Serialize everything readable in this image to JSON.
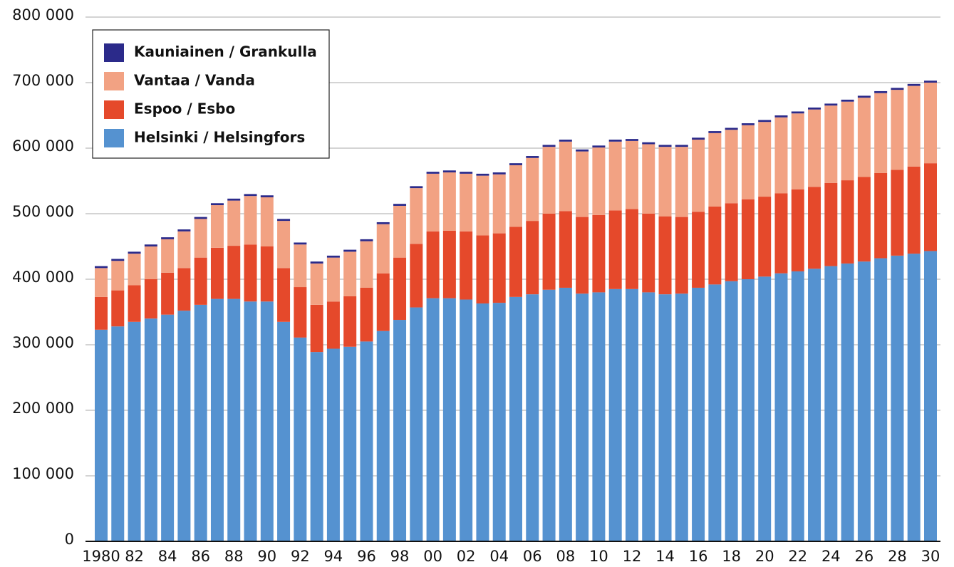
{
  "chart_data": {
    "type": "stacked-bar",
    "categories": [
      "1980",
      null,
      "82",
      null,
      "84",
      null,
      "86",
      null,
      "88",
      null,
      "90",
      null,
      "92",
      null,
      "94",
      null,
      "96",
      null,
      "98",
      null,
      "00",
      null,
      "02",
      null,
      "04",
      null,
      "06",
      null,
      "08",
      null,
      "10",
      null,
      "12",
      null,
      "14",
      null,
      "16",
      null,
      "18",
      null,
      "20",
      null,
      "22",
      null,
      "24",
      null,
      "26",
      null,
      "28",
      null,
      "30"
    ],
    "series": [
      {
        "name": "Helsinki / Helsingfors",
        "color": "#5592d0",
        "values": [
          323000,
          328000,
          335000,
          340000,
          346000,
          352000,
          361000,
          370000,
          370000,
          366000,
          366000,
          335000,
          311000,
          289000,
          294000,
          297000,
          305000,
          321000,
          338000,
          357000,
          371000,
          371000,
          369000,
          363000,
          364000,
          373000,
          377000,
          384000,
          387000,
          378000,
          380000,
          385000,
          385000,
          380000,
          377000,
          378000,
          387000,
          392000,
          397000,
          400000,
          404000,
          409000,
          412000,
          416000,
          420000,
          424000,
          427000,
          432000,
          436000,
          439000,
          443000
        ]
      },
      {
        "name": "Espoo / Esbo",
        "color": "#e5492b",
        "values": [
          50000,
          55000,
          56000,
          60000,
          64000,
          65000,
          72000,
          78000,
          81000,
          87000,
          84000,
          82000,
          77000,
          72000,
          72000,
          77000,
          82000,
          88000,
          95000,
          97000,
          102000,
          103000,
          104000,
          104000,
          106000,
          107000,
          112000,
          116000,
          117000,
          117000,
          118000,
          120000,
          122000,
          120000,
          119000,
          117000,
          116000,
          119000,
          119000,
          122000,
          122000,
          122000,
          125000,
          125000,
          127000,
          127000,
          129000,
          130000,
          131000,
          133000,
          134000
        ]
      },
      {
        "name": "Vantaa / Vanda",
        "color": "#f2a283",
        "values": [
          44000,
          45000,
          48000,
          50000,
          51000,
          56000,
          59000,
          65000,
          69000,
          74000,
          75000,
          72000,
          65000,
          63000,
          67000,
          68000,
          71000,
          75000,
          79000,
          85000,
          88000,
          89000,
          88000,
          91000,
          90000,
          94000,
          96000,
          102000,
          106000,
          100000,
          103000,
          105000,
          104000,
          106000,
          106000,
          107000,
          110000,
          112000,
          112000,
          113000,
          114000,
          116000,
          116000,
          118000,
          118000,
          120000,
          121000,
          122000,
          122000,
          123000,
          123000
        ]
      },
      {
        "name": "Kauniainen / Grankulla",
        "color": "#2b2a8a",
        "values": [
          3000,
          3000,
          3000,
          3000,
          3000,
          3000,
          3000,
          3000,
          3000,
          3000,
          3000,
          3000,
          3000,
          3000,
          3000,
          3000,
          3000,
          3000,
          3000,
          3000,
          3000,
          3000,
          3000,
          3000,
          3000,
          3000,
          3000,
          3000,
          3000,
          3000,
          3000,
          3000,
          3000,
          3000,
          3000,
          3000,
          3000,
          3000,
          3000,
          3000,
          3000,
          3000,
          3000,
          3000,
          3000,
          3000,
          3000,
          3000,
          3000,
          3000,
          3000
        ]
      }
    ],
    "ylim": [
      0,
      800000
    ],
    "yticks": [
      0,
      {
        "value": 100000,
        "label": "100 000"
      },
      {
        "value": 200000,
        "label": "200 000"
      },
      {
        "value": 300000,
        "label": "300 000"
      },
      {
        "value": 400000,
        "label": "400 000"
      },
      {
        "value": 500000,
        "label": "500 000"
      },
      {
        "value": 600000,
        "label": "600 000"
      },
      {
        "value": 700000,
        "label": "700 000"
      },
      {
        "value": 800000,
        "label": "800 000"
      }
    ],
    "grid": true,
    "legend": "upper left"
  }
}
